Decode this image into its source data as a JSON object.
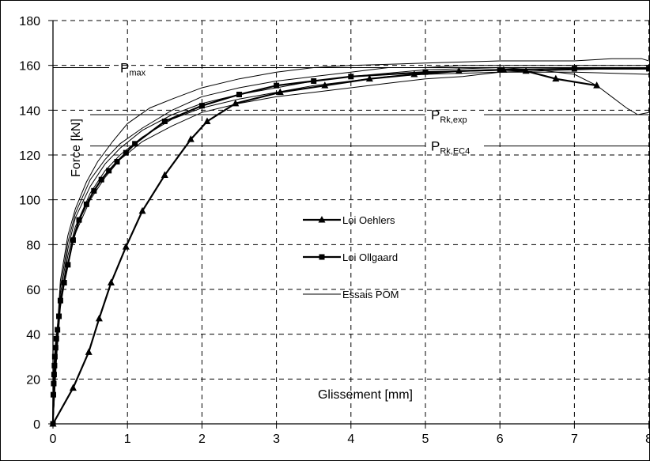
{
  "chart_data": {
    "type": "line",
    "title": "",
    "xlabel": "Glissement [mm]",
    "ylabel": "Force [kN]",
    "xlim": [
      0,
      8
    ],
    "ylim": [
      0,
      180
    ],
    "x_ticks": [
      "0",
      "1",
      "2",
      "3",
      "4",
      "5",
      "6",
      "7",
      "8"
    ],
    "y_ticks": [
      "0",
      "20",
      "40",
      "60",
      "80",
      "100",
      "120",
      "140",
      "160",
      "180"
    ],
    "grid": true,
    "legend": "center",
    "reference_lines": [
      {
        "main": "P",
        "sub": "max",
        "y": 159
      },
      {
        "main": "P",
        "sub": "Rk,exp",
        "y": 138
      },
      {
        "main": "P",
        "sub": "Rk,EC4",
        "y": 124
      }
    ],
    "series": [
      {
        "name": "Loi Oehlers",
        "marker": "triangle",
        "color": "#000000",
        "points": [
          [
            0,
            0
          ],
          [
            0.27,
            16
          ],
          [
            0.48,
            32
          ],
          [
            0.62,
            47
          ],
          [
            0.78,
            63
          ],
          [
            0.98,
            79
          ],
          [
            1.2,
            95
          ],
          [
            1.5,
            111
          ],
          [
            1.85,
            127
          ],
          [
            2.07,
            135
          ],
          [
            2.45,
            143
          ],
          [
            3.05,
            148
          ],
          [
            3.65,
            151
          ],
          [
            4.25,
            154
          ],
          [
            4.85,
            156
          ],
          [
            5.45,
            157.5
          ],
          [
            6.05,
            158
          ],
          [
            6.35,
            157.5
          ],
          [
            6.75,
            154
          ],
          [
            7.3,
            151
          ]
        ]
      },
      {
        "name": "Loi Ollgaard",
        "marker": "square",
        "color": "#000000",
        "points": [
          [
            0,
            0
          ],
          [
            0.005,
            13
          ],
          [
            0.01,
            18
          ],
          [
            0.015,
            22
          ],
          [
            0.02,
            26
          ],
          [
            0.025,
            30
          ],
          [
            0.035,
            34
          ],
          [
            0.045,
            38
          ],
          [
            0.06,
            42
          ],
          [
            0.08,
            48
          ],
          [
            0.1,
            55
          ],
          [
            0.15,
            63
          ],
          [
            0.2,
            71
          ],
          [
            0.27,
            82
          ],
          [
            0.35,
            91
          ],
          [
            0.45,
            98
          ],
          [
            0.55,
            104
          ],
          [
            0.65,
            109
          ],
          [
            0.75,
            113
          ],
          [
            0.86,
            117
          ],
          [
            0.98,
            121
          ],
          [
            1.1,
            125
          ],
          [
            1.5,
            135
          ],
          [
            2.0,
            142
          ],
          [
            2.5,
            147
          ],
          [
            3.0,
            151
          ],
          [
            3.5,
            153
          ],
          [
            4.0,
            155
          ],
          [
            5.0,
            157
          ],
          [
            6.0,
            158
          ],
          [
            7.0,
            158.5
          ],
          [
            8.0,
            158.5
          ]
        ]
      },
      {
        "name": "Essais POM",
        "marker": "none",
        "color": "#000000",
        "variants": [
          {
            "points": [
              [
                0,
                0
              ],
              [
                0.05,
                38
              ],
              [
                0.1,
                64
              ],
              [
                0.2,
                84
              ],
              [
                0.3,
                96
              ],
              [
                0.45,
                108
              ],
              [
                0.6,
                117
              ],
              [
                0.8,
                126
              ],
              [
                1.0,
                134
              ],
              [
                1.3,
                141
              ],
              [
                1.6,
                145
              ],
              [
                2.0,
                150
              ],
              [
                2.5,
                154
              ],
              [
                3.0,
                157
              ],
              [
                3.5,
                159
              ],
              [
                4.0,
                160
              ],
              [
                5.0,
                161
              ],
              [
                6.0,
                162
              ],
              [
                7.0,
                162
              ],
              [
                7.5,
                163
              ],
              [
                7.9,
                163
              ],
              [
                8.0,
                162
              ]
            ]
          },
          {
            "points": [
              [
                0,
                0
              ],
              [
                0.05,
                34
              ],
              [
                0.1,
                58
              ],
              [
                0.2,
                78
              ],
              [
                0.3,
                92
              ],
              [
                0.5,
                106
              ],
              [
                0.7,
                116
              ],
              [
                0.9,
                123
              ],
              [
                1.2,
                131
              ],
              [
                1.6,
                138
              ],
              [
                2.0,
                143
              ],
              [
                2.5,
                147
              ],
              [
                3.0,
                150
              ],
              [
                3.5,
                153
              ],
              [
                4.0,
                155
              ],
              [
                5.0,
                158
              ],
              [
                6.0,
                159
              ],
              [
                6.5,
                158
              ],
              [
                7.0,
                156
              ],
              [
                7.3,
                151
              ],
              [
                7.5,
                146
              ],
              [
                7.7,
                141
              ],
              [
                7.85,
                138
              ],
              [
                8.0,
                139
              ]
            ]
          },
          {
            "points": [
              [
                0,
                0
              ],
              [
                0.05,
                30
              ],
              [
                0.1,
                52
              ],
              [
                0.2,
                72
              ],
              [
                0.3,
                85
              ],
              [
                0.5,
                100
              ],
              [
                0.7,
                110
              ],
              [
                0.9,
                118
              ],
              [
                1.2,
                126
              ],
              [
                1.6,
                133
              ],
              [
                2.0,
                139
              ],
              [
                2.5,
                143
              ],
              [
                3.0,
                146
              ],
              [
                3.5,
                148
              ],
              [
                4.0,
                150
              ],
              [
                4.5,
                152
              ],
              [
                5.0,
                154
              ],
              [
                5.5,
                155
              ],
              [
                6.0,
                157
              ],
              [
                7.0,
                158
              ],
              [
                8.0,
                159
              ]
            ]
          },
          {
            "points": [
              [
                0,
                0
              ],
              [
                0.05,
                36
              ],
              [
                0.1,
                61
              ],
              [
                0.2,
                81
              ],
              [
                0.3,
                94
              ],
              [
                0.5,
                109
              ],
              [
                0.7,
                118
              ],
              [
                0.9,
                125
              ],
              [
                1.2,
                132
              ],
              [
                1.6,
                140
              ],
              [
                2.0,
                146
              ],
              [
                2.5,
                150
              ],
              [
                3.0,
                153
              ],
              [
                3.5,
                155
              ],
              [
                4.0,
                157
              ],
              [
                4.5,
                159
              ],
              [
                5.0,
                159
              ],
              [
                5.5,
                160
              ],
              [
                6.0,
                160
              ],
              [
                7.0,
                160
              ],
              [
                8.0,
                160
              ]
            ]
          },
          {
            "points": [
              [
                0,
                0
              ],
              [
                0.05,
                32
              ],
              [
                0.1,
                55
              ],
              [
                0.2,
                75
              ],
              [
                0.3,
                88
              ],
              [
                0.5,
                103
              ],
              [
                0.7,
                113
              ],
              [
                0.9,
                120
              ],
              [
                1.2,
                128
              ],
              [
                1.6,
                136
              ],
              [
                2.0,
                141
              ],
              [
                2.5,
                145
              ],
              [
                3.0,
                148
              ],
              [
                3.5,
                151
              ],
              [
                4.0,
                153
              ],
              [
                4.5,
                155
              ],
              [
                5.0,
                156
              ],
              [
                6.0,
                157
              ],
              [
                7.0,
                157
              ],
              [
                8.0,
                156
              ]
            ]
          }
        ]
      }
    ]
  }
}
